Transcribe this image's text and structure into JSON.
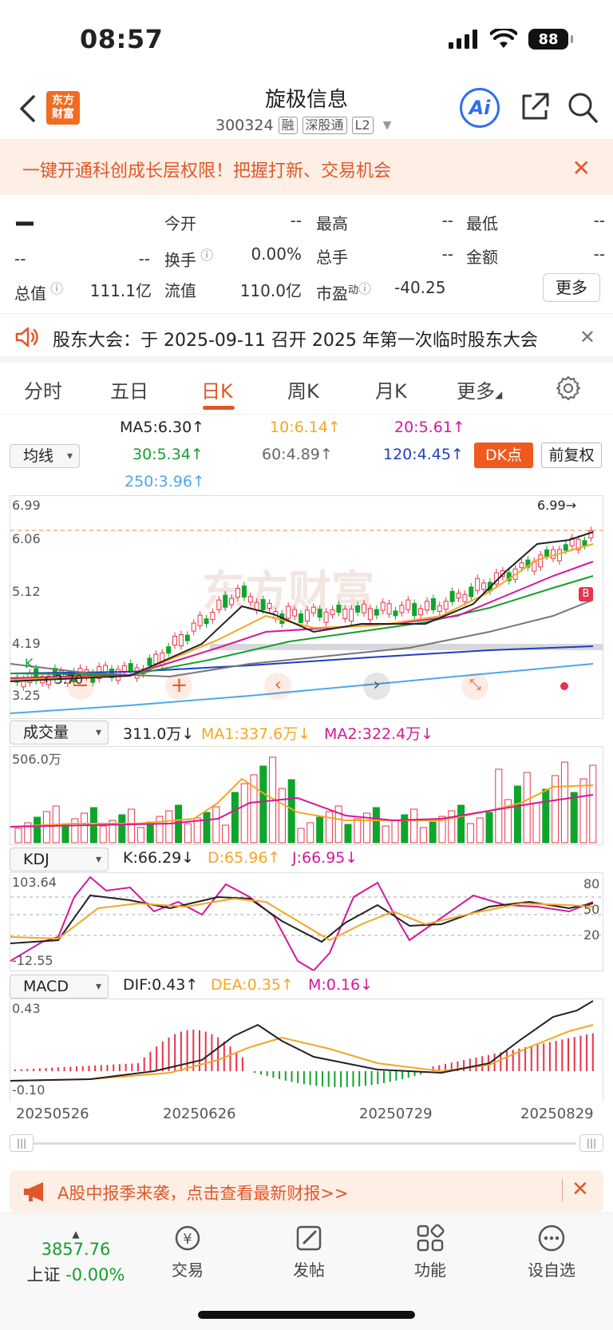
{
  "status": {
    "time": "08:57",
    "battery": "88"
  },
  "header": {
    "logo_line1": "东方",
    "logo_line2": "财富",
    "stock_name": "旋极信息",
    "stock_code": "300324",
    "tags": [
      "融",
      "深股通",
      "L2"
    ],
    "ai_label": "Ai"
  },
  "promo": {
    "text": "一键开通科创成长层权限！把握打新、交易机会"
  },
  "quote": {
    "price": "--",
    "change": "--",
    "change_pct": "--",
    "open_label": "今开",
    "open": "--",
    "high_label": "最高",
    "high": "--",
    "low_label": "最低",
    "low": "--",
    "turnover_label": "换手",
    "turnover": "0.00%",
    "volume_label": "总手",
    "volume": "--",
    "amount_label": "金额",
    "amount": "--",
    "mcap_label": "总值",
    "mcap": "111.1亿",
    "float_label": "流值",
    "float": "110.0亿",
    "pe_label": "市盈",
    "pe_sup": "动",
    "pe": "-40.25",
    "more_label": "更多"
  },
  "notice": {
    "text": "股东大会：于 2025-09-11 召开 2025 年第一次临时股东大会"
  },
  "tabs": [
    "分时",
    "五日",
    "日K",
    "周K",
    "月K",
    "更多"
  ],
  "ma_legend": {
    "selector": "均线",
    "ma5": "MA5:6.30↑",
    "ma10": "10:6.14↑",
    "ma20": "20:5.61↑",
    "ma30": "30:5.34↑",
    "ma60": "60:4.89↑",
    "ma120": "120:4.45↑",
    "ma250": "250:3.96↑",
    "dk_label": "DK点",
    "qfq_label": "前复权"
  },
  "kline": {
    "y_labels": [
      "6.99",
      "6.06",
      "5.12",
      "4.19",
      "3.25"
    ],
    "max_note": "6.99→",
    "min_note": "←3.70",
    "k_marker": "K",
    "b_marker": "B",
    "watermark": "东方财富"
  },
  "volume": {
    "selector": "成交量",
    "value": "311.0万↓",
    "ma1": "MA1:337.6万↓",
    "ma2": "MA2:322.4万↓",
    "y_top": "506.0万"
  },
  "kdj": {
    "selector": "KDJ",
    "k": "K:66.29↓",
    "d": "D:65.96↑",
    "j": "J:66.95↓",
    "y_top": "103.64",
    "y_bottom": "-12.55",
    "levels": [
      "80",
      "50",
      "20"
    ]
  },
  "macd": {
    "selector": "MACD",
    "dif": "DIF:0.43↑",
    "dea": "DEA:0.35↑",
    "m": "M:0.16↓",
    "y_top": "0.43",
    "y_bottom": "-0.10"
  },
  "dates": [
    "20250526",
    "20250626",
    "20250729",
    "20250829"
  ],
  "ad": {
    "text": "A股中报季来袭，点击查看最新财报>>"
  },
  "bottom_nav": {
    "index_value": "3857.76",
    "index_name": "上证",
    "index_change": "-0.00%",
    "items": [
      "交易",
      "发帖",
      "功能",
      "设自选"
    ]
  },
  "colors": {
    "up": "#e8334a",
    "down": "#0ea52b",
    "accent": "#f05a1e"
  }
}
